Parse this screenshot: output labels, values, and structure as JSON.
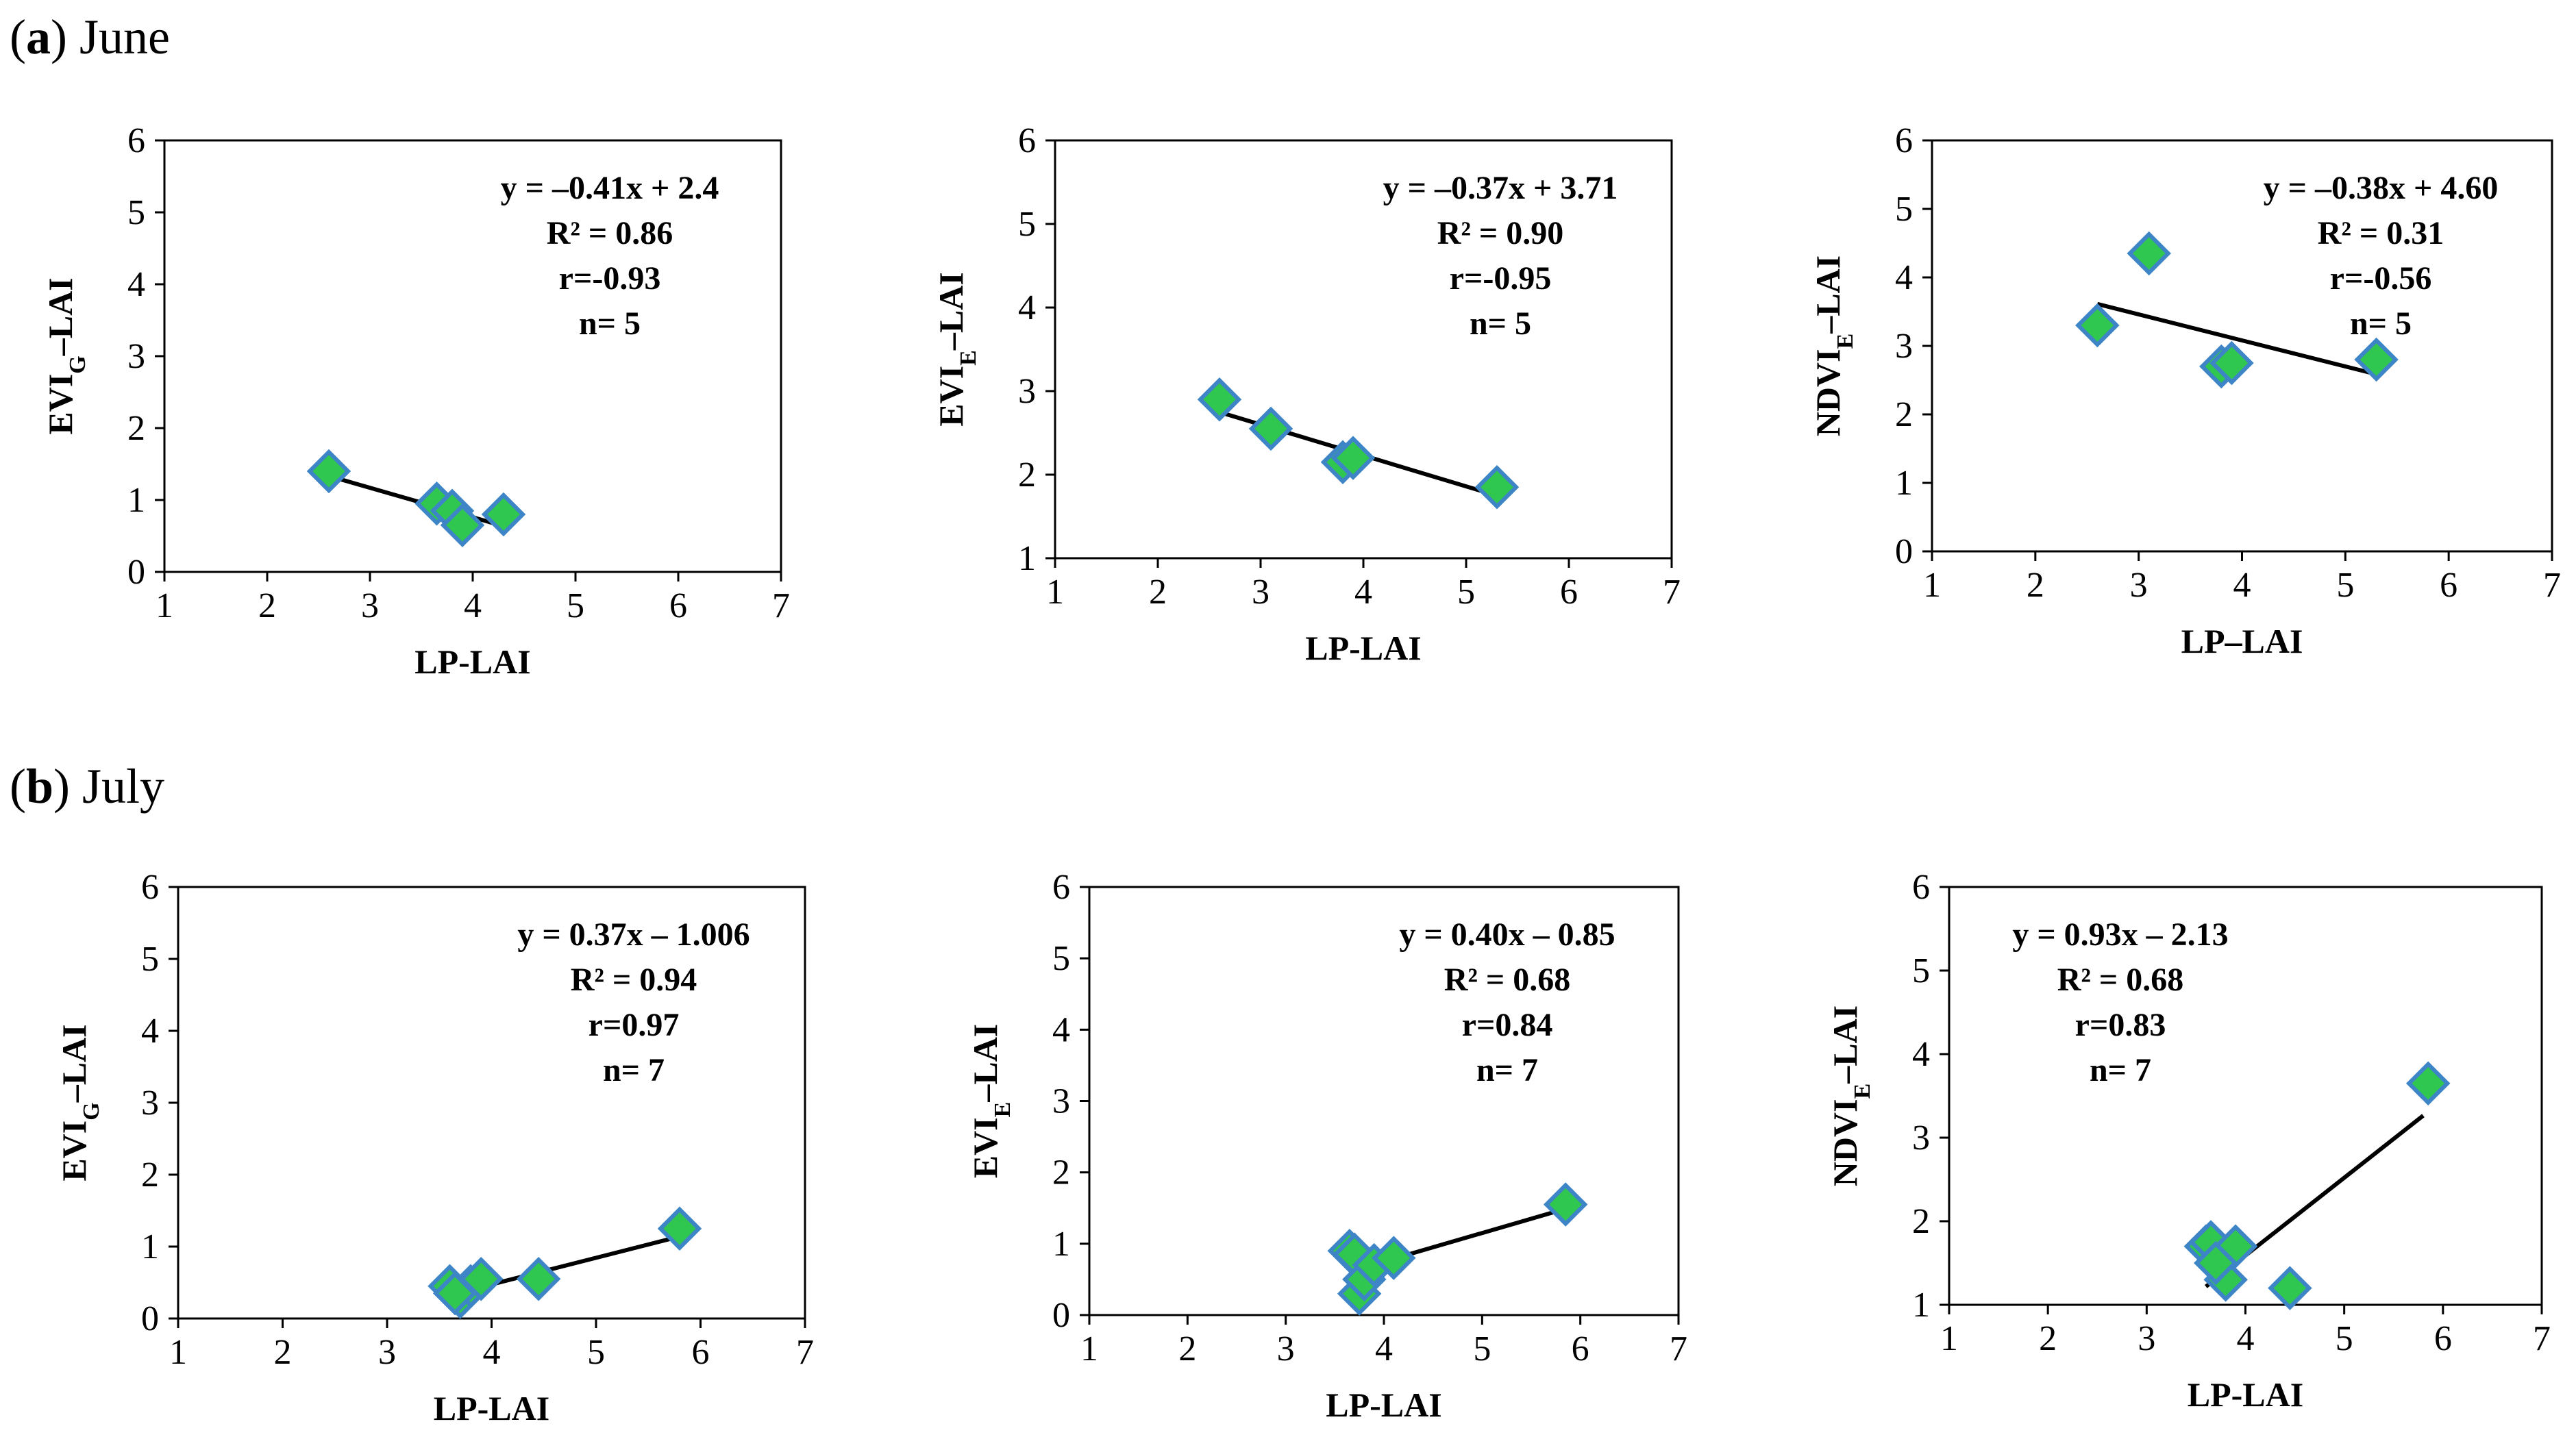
{
  "sections": [
    {
      "label_letter": "a",
      "label_text": "June"
    },
    {
      "label_letter": "b",
      "label_text": "July"
    }
  ],
  "colors": {
    "marker_fill": "#2fc750",
    "marker_stroke": "#3d85c6",
    "line": "#000000"
  },
  "chart_data": [
    {
      "type": "scatter",
      "section": "a",
      "title": "",
      "xlabel": "LP-LAI",
      "ylabel": "EVI",
      "ylabel_sub": "G",
      "ylabel_suffix": "–LAI",
      "xlim": [
        1,
        7
      ],
      "ylim": [
        0,
        6
      ],
      "xticks": [
        1,
        2,
        3,
        4,
        5,
        6,
        7
      ],
      "yticks": [
        0,
        1,
        2,
        3,
        4,
        5,
        6
      ],
      "x": [
        2.6,
        3.65,
        3.8,
        3.9,
        4.3
      ],
      "y": [
        1.4,
        0.95,
        0.85,
        0.65,
        0.8
      ],
      "trendline": {
        "slope": -0.41,
        "intercept": 2.4,
        "x_range": [
          2.6,
          4.3
        ]
      },
      "annotation": [
        "y = –0.41x + 2.4",
        "R² = 0.86",
        "r=-0.93",
        "n= 5"
      ],
      "annotation_pos": "top-right"
    },
    {
      "type": "scatter",
      "section": "a",
      "title": "",
      "xlabel": "LP-LAI",
      "ylabel": "EVI",
      "ylabel_sub": "E",
      "ylabel_suffix": "–LAI",
      "xlim": [
        1,
        7
      ],
      "ylim": [
        1,
        6
      ],
      "xticks": [
        1,
        2,
        3,
        4,
        5,
        6,
        7
      ],
      "yticks": [
        1,
        2,
        3,
        4,
        5,
        6
      ],
      "x": [
        2.6,
        3.1,
        3.8,
        3.9,
        5.3
      ],
      "y": [
        2.9,
        2.55,
        2.15,
        2.2,
        1.85
      ],
      "trendline": {
        "slope": -0.37,
        "intercept": 3.71,
        "x_range": [
          2.6,
          5.3
        ]
      },
      "annotation": [
        "y = –0.37x + 3.71",
        "R² = 0.90",
        "r=-0.95",
        "n= 5"
      ],
      "annotation_pos": "top-right"
    },
    {
      "type": "scatter",
      "section": "a",
      "title": "",
      "xlabel": "LP–LAI",
      "ylabel": "NDVI",
      "ylabel_sub": "E",
      "ylabel_suffix": "–LAI",
      "xlim": [
        1,
        7
      ],
      "ylim": [
        0,
        6
      ],
      "xticks": [
        1,
        2,
        3,
        4,
        5,
        6,
        7
      ],
      "yticks": [
        0,
        1,
        2,
        3,
        4,
        5,
        6
      ],
      "x": [
        2.6,
        3.1,
        3.8,
        3.9,
        5.3
      ],
      "y": [
        3.3,
        4.35,
        2.7,
        2.75,
        2.8
      ],
      "trendline": {
        "slope": -0.38,
        "intercept": 4.6,
        "x_range": [
          2.6,
          5.3
        ]
      },
      "annotation": [
        "y = –0.38x + 4.60",
        "R² = 0.31",
        "r=-0.56",
        "n= 5"
      ],
      "annotation_pos": "top-right"
    },
    {
      "type": "scatter",
      "section": "b",
      "title": "",
      "xlabel": "LP-LAI",
      "ylabel": "EVI",
      "ylabel_sub": "G",
      "ylabel_suffix": "–LAI",
      "xlim": [
        1,
        7
      ],
      "ylim": [
        0,
        6
      ],
      "xticks": [
        1,
        2,
        3,
        4,
        5,
        6,
        7
      ],
      "yticks": [
        0,
        1,
        2,
        3,
        4,
        5,
        6
      ],
      "x": [
        3.6,
        3.7,
        3.8,
        3.9,
        4.45,
        5.8,
        3.65
      ],
      "y": [
        0.45,
        0.3,
        0.45,
        0.55,
        0.55,
        1.25,
        0.35
      ],
      "trendline": {
        "slope": 0.37,
        "intercept": -1.006,
        "x_range": [
          3.65,
          5.8
        ]
      },
      "annotation": [
        "y = 0.37x – 1.006",
        "R² = 0.94",
        "r=0.97",
        "n= 7"
      ],
      "annotation_pos": "top-right"
    },
    {
      "type": "scatter",
      "section": "b",
      "title": "",
      "xlabel": "LP-LAI",
      "ylabel": "EVI",
      "ylabel_sub": "E",
      "ylabel_suffix": "–LAI",
      "xlim": [
        1,
        7
      ],
      "ylim": [
        0,
        6
      ],
      "xticks": [
        1,
        2,
        3,
        4,
        5,
        6,
        7
      ],
      "yticks": [
        0,
        1,
        2,
        3,
        4,
        5,
        6
      ],
      "x": [
        3.65,
        3.7,
        3.75,
        3.8,
        3.9,
        4.1,
        5.85
      ],
      "y": [
        0.9,
        0.85,
        0.3,
        0.5,
        0.7,
        0.8,
        1.55
      ],
      "trendline": {
        "slope": 0.4,
        "intercept": -0.85,
        "x_range": [
          3.65,
          5.85
        ]
      },
      "annotation": [
        "y = 0.40x – 0.85",
        "R² = 0.68",
        "r=0.84",
        "n= 7"
      ],
      "annotation_pos": "top-right"
    },
    {
      "type": "scatter",
      "section": "b",
      "title": "",
      "xlabel": "LP-LAI",
      "ylabel": "NDVI",
      "ylabel_sub": "E",
      "ylabel_suffix": "–LAI",
      "xlim": [
        1,
        7
      ],
      "ylim": [
        1,
        6
      ],
      "xticks": [
        1,
        2,
        3,
        4,
        5,
        6,
        7
      ],
      "yticks": [
        1,
        2,
        3,
        4,
        5,
        6
      ],
      "x": [
        3.6,
        3.65,
        3.8,
        3.9,
        4.45,
        5.85,
        3.7
      ],
      "y": [
        1.7,
        1.75,
        1.3,
        1.7,
        1.2,
        3.65,
        1.5
      ],
      "trendline": {
        "slope": 0.93,
        "intercept": -2.13,
        "x_range": [
          3.6,
          5.8
        ]
      },
      "annotation": [
        "y = 0.93x – 2.13",
        "R² = 0.68",
        "r=0.83",
        "n= 7"
      ],
      "annotation_pos": "top-left"
    }
  ]
}
